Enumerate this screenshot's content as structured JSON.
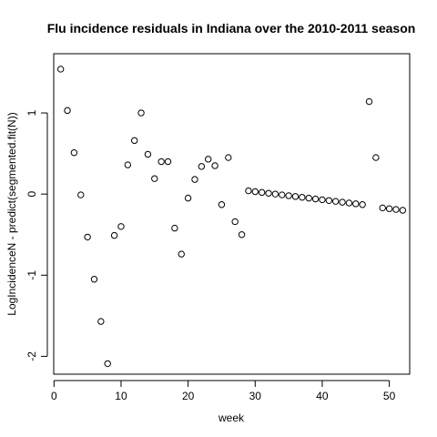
{
  "chart_data": {
    "type": "scatter",
    "title": "Flu incidence residuals in Indiana over the 2010-2011 season",
    "xlabel": "week",
    "ylabel": "LogIncidenceN - predict(segmented.fit(N))",
    "xlim": [
      -0.04,
      53.04
    ],
    "ylim": [
      -2.22,
      1.73
    ],
    "x_ticks": [
      0,
      10,
      20,
      30,
      40,
      50
    ],
    "y_ticks": [
      -2,
      -1,
      0,
      1
    ],
    "x": [
      1,
      2,
      3,
      4,
      5,
      6,
      7,
      8,
      9,
      10,
      11,
      12,
      13,
      14,
      15,
      16,
      17,
      18,
      19,
      20,
      21,
      22,
      23,
      24,
      25,
      26,
      27,
      28,
      29,
      30,
      31,
      32,
      33,
      34,
      35,
      36,
      37,
      38,
      39,
      40,
      41,
      42,
      43,
      44,
      45,
      46,
      47,
      48,
      49,
      50,
      51,
      52
    ],
    "y": [
      1.54,
      1.03,
      0.51,
      -0.01,
      -0.53,
      -1.05,
      -1.57,
      -2.09,
      -0.51,
      -0.4,
      0.36,
      0.66,
      1.0,
      0.49,
      0.19,
      0.4,
      0.4,
      -0.42,
      -0.74,
      -0.05,
      0.18,
      0.34,
      0.43,
      0.35,
      -0.13,
      0.45,
      -0.34,
      -0.5,
      0.04,
      0.03,
      0.02,
      0.01,
      0.0,
      -0.01,
      -0.02,
      -0.03,
      -0.04,
      -0.05,
      -0.06,
      -0.07,
      -0.08,
      -0.09,
      -0.1,
      -0.11,
      -0.12,
      -0.13,
      1.14,
      0.45,
      -0.17,
      -0.18,
      -0.19,
      -0.2
    ]
  }
}
